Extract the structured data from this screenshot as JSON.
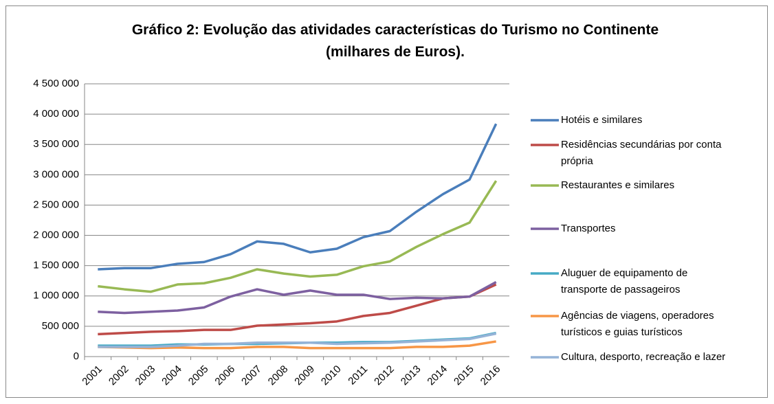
{
  "chart_data": {
    "type": "line",
    "title": "Gráfico 2: Evolução das atividades características do Turismo no Continente (milhares de Euros).",
    "categories": [
      "2001",
      "2002",
      "2003",
      "2004",
      "2005",
      "2006",
      "2007",
      "2008",
      "2009",
      "2010",
      "2011",
      "2012",
      "2013",
      "2014",
      "2015",
      "2016"
    ],
    "series": [
      {
        "name": "Hotéis e similares",
        "color": "#4a7ebb",
        "values": [
          1440000,
          1460000,
          1460000,
          1530000,
          1560000,
          1690000,
          1900000,
          1860000,
          1720000,
          1780000,
          1970000,
          2070000,
          2390000,
          2680000,
          2920000,
          3840000
        ]
      },
      {
        "name": "Residências secundárias por conta própria",
        "color": "#be4b48",
        "values": [
          370000,
          390000,
          410000,
          420000,
          440000,
          440000,
          510000,
          530000,
          550000,
          580000,
          670000,
          720000,
          840000,
          960000,
          990000,
          1190000
        ]
      },
      {
        "name": "Restaurantes e similares",
        "color": "#98b954",
        "values": [
          1160000,
          1110000,
          1070000,
          1190000,
          1210000,
          1300000,
          1440000,
          1370000,
          1320000,
          1350000,
          1490000,
          1570000,
          1810000,
          2020000,
          2210000,
          2900000
        ]
      },
      {
        "name": "Transportes",
        "color": "#7d60a0",
        "values": [
          740000,
          720000,
          740000,
          760000,
          810000,
          990000,
          1110000,
          1020000,
          1090000,
          1020000,
          1020000,
          950000,
          970000,
          960000,
          990000,
          1230000
        ]
      },
      {
        "name": "Aluguer de equipamento de transporte de passageiros",
        "color": "#46aac5",
        "values": [
          180000,
          180000,
          180000,
          200000,
          200000,
          210000,
          210000,
          220000,
          230000,
          230000,
          240000,
          240000,
          260000,
          280000,
          300000,
          390000
        ]
      },
      {
        "name": "Agências de viagens, operadores turísticos e guias turísticos",
        "color": "#f79646",
        "values": [
          160000,
          150000,
          140000,
          150000,
          140000,
          140000,
          160000,
          160000,
          140000,
          140000,
          140000,
          140000,
          160000,
          160000,
          180000,
          250000
        ]
      },
      {
        "name": "Cultura, desporto, recreação e lazer",
        "color": "#95b3d7",
        "values": [
          160000,
          160000,
          160000,
          180000,
          210000,
          210000,
          230000,
          230000,
          230000,
          210000,
          220000,
          230000,
          250000,
          270000,
          290000,
          380000
        ]
      }
    ],
    "ylim": [
      0,
      4500000
    ],
    "yticks": [
      0,
      {
        "value": 500000,
        "label": "500 000"
      },
      {
        "value": 1000000,
        "label": "1 000 000"
      },
      {
        "value": 1500000,
        "label": "1 500 000"
      },
      {
        "value": 2000000,
        "label": "2 000 000"
      },
      {
        "value": 2500000,
        "label": "2 500 000"
      },
      {
        "value": 3000000,
        "label": "3 000 000"
      },
      {
        "value": 3500000,
        "label": "3 500 000"
      },
      {
        "value": 4000000,
        "label": "4 000 000"
      },
      {
        "value": 4500000,
        "label": "4 500 000"
      }
    ],
    "grid": true,
    "legend": "right"
  }
}
